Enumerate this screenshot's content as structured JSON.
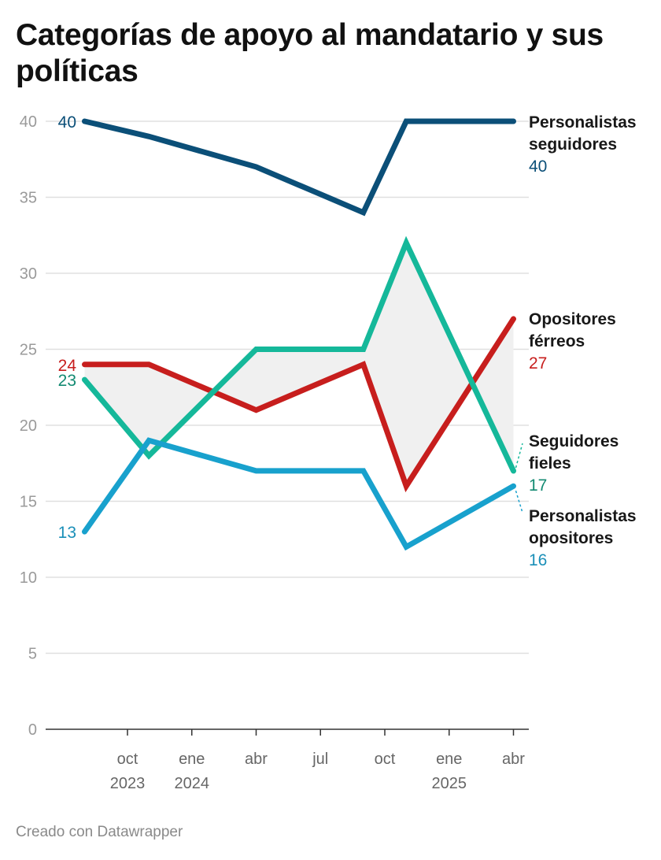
{
  "chart_data": {
    "type": "line",
    "title": "Categorías de apoyo al mandatario y sus políticas",
    "xlabel": "",
    "ylabel": "",
    "ylim": [
      0,
      40
    ],
    "yticks": [
      0,
      5,
      10,
      15,
      20,
      25,
      30,
      35,
      40
    ],
    "grid": true,
    "x": [
      "2023-08",
      "2023-11",
      "2024-04",
      "2024-09",
      "2024-11",
      "2025-04"
    ],
    "xticks": [
      {
        "date": "2023-10",
        "label": [
          "oct",
          "2023"
        ]
      },
      {
        "date": "2024-01",
        "label": [
          "ene",
          "2024"
        ]
      },
      {
        "date": "2024-04",
        "label": [
          "abr",
          ""
        ]
      },
      {
        "date": "2024-07",
        "label": [
          "jul",
          ""
        ]
      },
      {
        "date": "2024-10",
        "label": [
          "oct",
          ""
        ]
      },
      {
        "date": "2025-01",
        "label": [
          "ene",
          "2025"
        ]
      },
      {
        "date": "2025-04",
        "label": [
          "abr",
          ""
        ]
      }
    ],
    "series": [
      {
        "name": "Personalistas seguidores",
        "name_lines": [
          "Personalistas",
          "seguidores"
        ],
        "values": [
          40,
          39,
          37,
          34,
          40,
          40
        ],
        "color": "#0b4f78",
        "label_color": "#0b4f78"
      },
      {
        "name": "Opositores férreos",
        "name_lines": [
          "Opositores",
          "férreos"
        ],
        "values": [
          24,
          24,
          21,
          24,
          16,
          27
        ],
        "color": "#c71e1d",
        "label_color": "#c71e1d"
      },
      {
        "name": "Seguidores fieles",
        "name_lines": [
          "Seguidores",
          "fieles"
        ],
        "values": [
          23,
          18,
          25,
          25,
          32,
          17
        ],
        "color": "#15b89a",
        "label_color": "#138a72"
      },
      {
        "name": "Personalistas opositores",
        "name_lines": [
          "Personalistas",
          "opositores"
        ],
        "values": [
          13,
          19,
          17,
          17,
          12,
          16
        ],
        "color": "#18a1cd",
        "label_color": "#1a8fb8"
      }
    ],
    "range_area": {
      "between": [
        "Opositores férreos",
        "Seguidores fieles"
      ],
      "color": "#f0f0f0"
    }
  },
  "footer": "Creado con Datawrapper"
}
